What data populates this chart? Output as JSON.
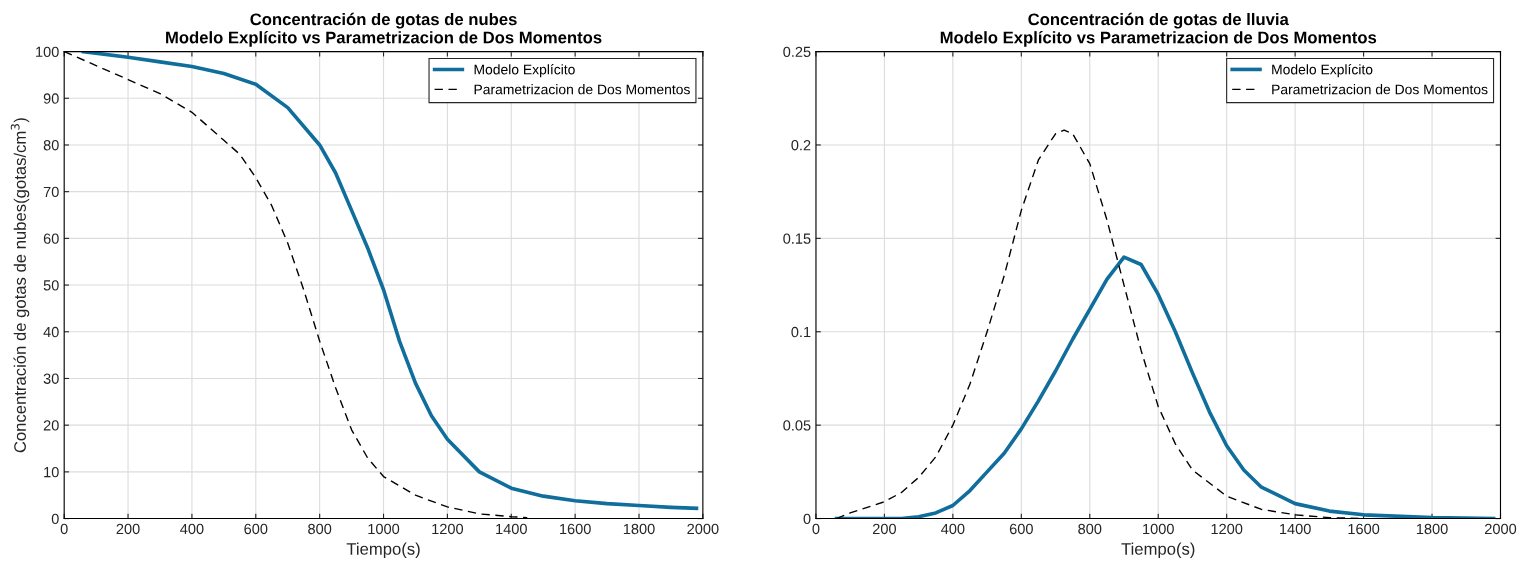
{
  "chart_data": [
    {
      "type": "line",
      "title": "Concentración de gotas de nubes\nModelo Explícito vs Parametrizacion de Dos Momentos",
      "xlabel": "Tiempo(s)",
      "ylabel": "Concentración de gotas de nubes(gotas/cm$^{3}$)",
      "series": [
        {
          "name": "Modelo Explícito",
          "color": "#106e9c",
          "line_style": "solid",
          "x": [
            60,
            200,
            300,
            400,
            500,
            600,
            700,
            800,
            850,
            900,
            950,
            1000,
            1050,
            1100,
            1150,
            1200,
            1300,
            1400,
            1500,
            1600,
            1700,
            1800,
            1900,
            1980
          ],
          "values": [
            100,
            98.8,
            97.8,
            96.8,
            95.3,
            93,
            88,
            80,
            74,
            66,
            58,
            49,
            38,
            29,
            22,
            17,
            10,
            6.5,
            4.8,
            3.8,
            3.2,
            2.8,
            2.4,
            2.2
          ]
        },
        {
          "name": "Parametrizacion de Dos Momentos",
          "color": "#000000",
          "line_style": "dashed",
          "x": [
            0,
            100,
            200,
            300,
            400,
            500,
            550,
            600,
            650,
            700,
            750,
            800,
            850,
            900,
            950,
            1000,
            1100,
            1200,
            1300,
            1400,
            1450
          ],
          "values": [
            100,
            97,
            94,
            91,
            87,
            81,
            78,
            73,
            67,
            59,
            49,
            38,
            28,
            19,
            13,
            9,
            5,
            2.5,
            1,
            0.4,
            0.2
          ]
        }
      ],
      "xlim": [
        0,
        2000
      ],
      "xticks": [
        0,
        200,
        400,
        600,
        800,
        1000,
        1200,
        1400,
        1600,
        1800,
        2000
      ],
      "ylim": [
        0,
        100
      ],
      "yticks": [
        0,
        10,
        20,
        30,
        40,
        50,
        60,
        70,
        80,
        90,
        100
      ],
      "grid": true,
      "legend": "top right",
      "marker": "none"
    },
    {
      "type": "line",
      "title": "Concentración de gotas de lluvia\nModelo Explícito vs Parametrizacion de Dos Momentos",
      "xlabel": "Tiempo(s)",
      "series": [
        {
          "name": "Modelo Explícito",
          "color": "#106e9c",
          "line_style": "solid",
          "x": [
            60,
            250,
            300,
            350,
            400,
            450,
            500,
            550,
            600,
            650,
            700,
            750,
            800,
            850,
            900,
            950,
            1000,
            1050,
            1100,
            1150,
            1200,
            1250,
            1300,
            1400,
            1500,
            1600,
            1800,
            1980
          ],
          "values": [
            0,
            0,
            0.001,
            0.003,
            0.007,
            0.015,
            0.025,
            0.035,
            0.048,
            0.063,
            0.079,
            0.096,
            0.112,
            0.128,
            0.14,
            0.136,
            0.12,
            0.1,
            0.078,
            0.057,
            0.039,
            0.026,
            0.017,
            0.008,
            0.004,
            0.002,
            0.0005,
            0
          ]
        },
        {
          "name": "Parametrizacion de Dos Momentos",
          "color": "#000000",
          "line_style": "dashed",
          "x": [
            60,
            100,
            200,
            250,
            300,
            350,
            400,
            450,
            500,
            550,
            600,
            650,
            700,
            725,
            750,
            800,
            850,
            900,
            950,
            1000,
            1050,
            1100,
            1200,
            1300,
            1400,
            1500,
            1600
          ],
          "values": [
            0,
            0.003,
            0.009,
            0.014,
            0.022,
            0.033,
            0.05,
            0.072,
            0.1,
            0.13,
            0.165,
            0.192,
            0.206,
            0.208,
            0.206,
            0.19,
            0.16,
            0.125,
            0.09,
            0.06,
            0.04,
            0.026,
            0.012,
            0.005,
            0.002,
            0.0005,
            0
          ]
        }
      ],
      "xlim": [
        0,
        2000
      ],
      "xticks": [
        0,
        200,
        400,
        600,
        800,
        1000,
        1200,
        1400,
        1600,
        1800,
        2000
      ],
      "ylim": [
        0,
        0.25
      ],
      "yticks": [
        0,
        0.05,
        0.1,
        0.15,
        0.2,
        0.25
      ],
      "grid": true,
      "legend": "top right",
      "marker": "none"
    }
  ]
}
